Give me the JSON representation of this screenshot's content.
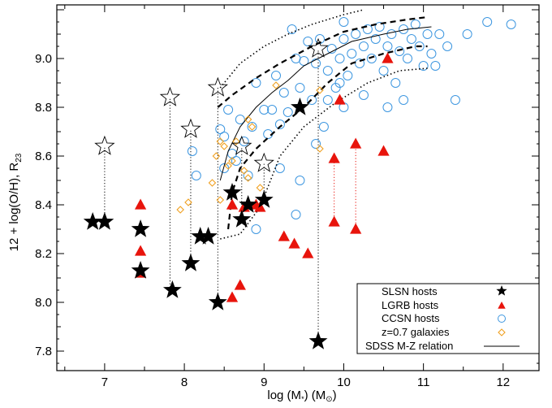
{
  "chart_data": {
    "type": "scatter",
    "xlabel_main": "log (M",
    "xlabel_sub": "*",
    "xlabel_unit": ") (M",
    "xlabel_unit_sub": "⊙",
    "xlabel_end": ")",
    "ylabel_main": "12 + log(O/H), R",
    "ylabel_sub": "23",
    "xlim": [
      6.4,
      12.45
    ],
    "ylim": [
      7.72,
      9.22
    ],
    "x_ticks": [
      7,
      8,
      9,
      10,
      11,
      12
    ],
    "y_ticks": [
      7.8,
      8.0,
      8.2,
      8.4,
      8.6,
      8.8,
      9.0
    ],
    "colors": {
      "slsn": "#000000",
      "lgrb": "#e8140c",
      "ccsn": "#3e97e0",
      "z07": "#f0a020",
      "connector_black": "#000000",
      "connector_red": "#e8140c"
    },
    "legend": [
      {
        "label": "SLSN hosts",
        "marker": "filled-star"
      },
      {
        "label": "LGRB hosts",
        "marker": "filled-triangle"
      },
      {
        "label": "CCSN hosts",
        "marker": "open-circle"
      },
      {
        "label": "z=0.7 galaxies",
        "marker": "open-diamond"
      },
      {
        "label": "SDSS M-Z relation",
        "marker": "line"
      }
    ],
    "slsn_filled": [
      [
        6.85,
        8.33
      ],
      [
        7.0,
        8.33
      ],
      [
        7.45,
        8.3
      ],
      [
        7.45,
        8.13
      ],
      [
        7.85,
        8.05
      ],
      [
        8.08,
        8.16
      ],
      [
        8.2,
        8.27
      ],
      [
        8.3,
        8.27
      ],
      [
        8.42,
        8.0
      ],
      [
        8.6,
        8.45
      ],
      [
        8.72,
        8.34
      ],
      [
        8.8,
        8.4
      ],
      [
        9.0,
        8.42
      ],
      [
        9.45,
        8.8
      ],
      [
        9.68,
        7.84
      ]
    ],
    "slsn_open": [
      [
        7.0,
        8.64
      ],
      [
        7.82,
        8.84
      ],
      [
        8.08,
        8.71
      ],
      [
        8.42,
        8.88
      ],
      [
        8.72,
        8.64
      ],
      [
        9.0,
        8.57
      ],
      [
        9.68,
        9.04
      ]
    ],
    "slsn_links": [
      [
        7.0,
        8.33,
        8.64
      ],
      [
        7.82,
        8.05,
        8.84
      ],
      [
        8.08,
        8.16,
        8.71
      ],
      [
        8.42,
        8.0,
        8.88
      ],
      [
        8.72,
        8.34,
        8.64
      ],
      [
        9.0,
        8.42,
        8.57
      ],
      [
        9.68,
        7.84,
        9.04
      ]
    ],
    "lgrb": [
      [
        7.45,
        8.4
      ],
      [
        7.45,
        8.21
      ],
      [
        7.45,
        8.12
      ],
      [
        8.6,
        8.02
      ],
      [
        8.7,
        8.07
      ],
      [
        8.6,
        8.4
      ],
      [
        8.75,
        8.39
      ],
      [
        8.9,
        8.4
      ],
      [
        8.95,
        8.39
      ],
      [
        9.25,
        8.27
      ],
      [
        9.38,
        8.24
      ],
      [
        9.55,
        8.2
      ],
      [
        9.88,
        8.59
      ],
      [
        9.88,
        8.33
      ],
      [
        9.95,
        8.83
      ],
      [
        10.15,
        8.65
      ],
      [
        10.15,
        8.3
      ],
      [
        10.5,
        8.62
      ],
      [
        10.55,
        9.0
      ]
    ],
    "lgrb_links": [
      [
        9.88,
        8.33,
        8.59
      ],
      [
        10.15,
        8.3,
        8.65
      ]
    ],
    "ccsn": [
      [
        8.1,
        8.62
      ],
      [
        8.15,
        8.52
      ],
      [
        8.45,
        8.71
      ],
      [
        8.5,
        8.68
      ],
      [
        8.55,
        8.79
      ],
      [
        8.6,
        8.61
      ],
      [
        8.65,
        8.58
      ],
      [
        8.7,
        8.75
      ],
      [
        8.75,
        8.66
      ],
      [
        8.8,
        8.52
      ],
      [
        8.85,
        8.72
      ],
      [
        8.9,
        8.3
      ],
      [
        8.9,
        8.9
      ],
      [
        9.0,
        8.79
      ],
      [
        9.05,
        8.69
      ],
      [
        9.1,
        8.79
      ],
      [
        9.15,
        8.93
      ],
      [
        9.2,
        8.73
      ],
      [
        9.25,
        8.86
      ],
      [
        9.3,
        8.78
      ],
      [
        9.4,
        8.36
      ],
      [
        9.4,
        9.0
      ],
      [
        9.45,
        8.88
      ],
      [
        9.5,
        8.99
      ],
      [
        9.55,
        9.07
      ],
      [
        9.6,
        8.83
      ],
      [
        9.65,
        8.98
      ],
      [
        9.7,
        9.08
      ],
      [
        9.75,
        8.72
      ],
      [
        9.8,
        8.83
      ],
      [
        9.8,
        8.95
      ],
      [
        9.85,
        9.04
      ],
      [
        9.9,
        8.88
      ],
      [
        9.95,
        9.0
      ],
      [
        10.0,
        8.8
      ],
      [
        10.0,
        9.08
      ],
      [
        10.05,
        8.93
      ],
      [
        10.1,
        9.02
      ],
      [
        10.15,
        9.1
      ],
      [
        10.2,
        8.98
      ],
      [
        10.25,
        9.05
      ],
      [
        10.3,
        9.12
      ],
      [
        10.35,
        9.0
      ],
      [
        10.4,
        9.08
      ],
      [
        10.45,
        9.13
      ],
      [
        10.5,
        8.95
      ],
      [
        10.55,
        9.05
      ],
      [
        10.6,
        9.1
      ],
      [
        10.65,
        8.9
      ],
      [
        10.7,
        9.03
      ],
      [
        10.75,
        9.12
      ],
      [
        10.8,
        9.0
      ],
      [
        10.85,
        9.08
      ],
      [
        10.9,
        9.14
      ],
      [
        10.95,
        9.05
      ],
      [
        11.0,
        8.97
      ],
      [
        11.05,
        9.1
      ],
      [
        11.1,
        9.02
      ],
      [
        11.15,
        8.97
      ],
      [
        11.2,
        9.1
      ],
      [
        11.3,
        9.05
      ],
      [
        11.4,
        8.83
      ],
      [
        11.55,
        9.1
      ],
      [
        11.8,
        9.15
      ],
      [
        12.1,
        9.14
      ],
      [
        10.25,
        8.85
      ],
      [
        10.55,
        8.8
      ],
      [
        10.75,
        8.83
      ],
      [
        9.65,
        8.65
      ],
      [
        9.2,
        8.55
      ],
      [
        9.45,
        8.5
      ],
      [
        10.0,
        9.15
      ],
      [
        9.35,
        9.12
      ],
      [
        8.5,
        8.55
      ],
      [
        9.95,
        8.9
      ]
    ],
    "z07": [
      [
        7.95,
        8.38
      ],
      [
        8.05,
        8.41
      ],
      [
        8.35,
        8.49
      ],
      [
        8.4,
        8.6
      ],
      [
        8.45,
        8.42
      ],
      [
        8.5,
        8.64
      ],
      [
        8.55,
        8.56
      ],
      [
        8.6,
        8.58
      ],
      [
        8.65,
        8.66
      ],
      [
        8.75,
        8.54
      ],
      [
        8.8,
        8.51
      ],
      [
        8.8,
        8.75
      ],
      [
        8.85,
        8.72
      ],
      [
        8.95,
        8.47
      ],
      [
        9.15,
        8.89
      ],
      [
        9.7,
        8.63
      ],
      [
        9.7,
        8.87
      ],
      [
        8.45,
        8.66
      ]
    ],
    "sdss_median": [
      [
        8.45,
        8.5
      ],
      [
        8.55,
        8.62
      ],
      [
        8.7,
        8.72
      ],
      [
        8.9,
        8.8
      ],
      [
        9.1,
        8.86
      ],
      [
        9.3,
        8.91
      ],
      [
        9.5,
        8.97
      ],
      [
        9.8,
        9.02
      ],
      [
        10.1,
        9.07
      ],
      [
        10.5,
        9.1
      ],
      [
        10.8,
        9.12
      ],
      [
        11.1,
        9.13
      ]
    ],
    "sdss_dashed_upper": [
      [
        8.42,
        8.8
      ],
      [
        8.6,
        8.85
      ],
      [
        8.9,
        8.92
      ],
      [
        9.2,
        8.98
      ],
      [
        9.6,
        9.05
      ],
      [
        10.0,
        9.11
      ],
      [
        10.4,
        9.14
      ],
      [
        10.8,
        9.16
      ],
      [
        11.05,
        9.17
      ]
    ],
    "sdss_dashed_lower": [
      [
        8.55,
        8.3
      ],
      [
        8.6,
        8.45
      ],
      [
        8.7,
        8.55
      ],
      [
        8.9,
        8.63
      ],
      [
        9.2,
        8.72
      ],
      [
        9.5,
        8.8
      ],
      [
        9.8,
        8.9
      ],
      [
        10.1,
        8.98
      ],
      [
        10.5,
        9.02
      ],
      [
        10.9,
        9.05
      ],
      [
        11.05,
        9.05
      ]
    ],
    "sdss_dotted_upper": [
      [
        8.45,
        8.88
      ],
      [
        8.7,
        8.98
      ],
      [
        9.0,
        9.05
      ],
      [
        9.3,
        9.1
      ],
      [
        9.6,
        9.14
      ],
      [
        10.0,
        9.18
      ],
      [
        10.25,
        9.2
      ]
    ],
    "sdss_dotted_lower": [
      [
        8.45,
        8.26
      ],
      [
        8.7,
        8.28
      ],
      [
        8.95,
        8.39
      ],
      [
        9.2,
        8.6
      ],
      [
        9.5,
        8.72
      ],
      [
        9.9,
        8.82
      ],
      [
        10.3,
        8.9
      ],
      [
        10.7,
        8.95
      ],
      [
        11.05,
        8.96
      ]
    ]
  }
}
